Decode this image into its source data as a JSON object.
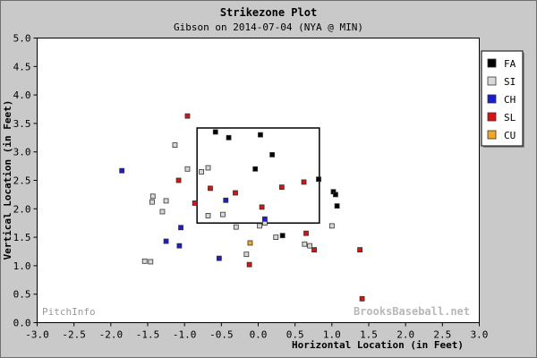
{
  "chart_data": {
    "type": "scatter",
    "title": "Strikezone Plot",
    "subtitle": "Gibson on 2014-07-04 (NYA @ MIN)",
    "xlabel": "Horizontal Location (in Feet)",
    "ylabel": "Vertical Location (in Feet)",
    "xlim": [
      -3.0,
      3.0
    ],
    "ylim": [
      0.0,
      5.0
    ],
    "xticks": [
      "-3.0",
      "-2.5",
      "-2.0",
      "-1.5",
      "-1.0",
      "-0.5",
      "0.0",
      "0.5",
      "1.0",
      "1.5",
      "2.0",
      "2.5",
      "3.0"
    ],
    "yticks": [
      "0.0",
      "0.5",
      "1.0",
      "1.5",
      "2.0",
      "2.5",
      "3.0",
      "3.5",
      "4.0",
      "4.5",
      "5.0"
    ],
    "grid": false,
    "legend_position": "right",
    "strike_zone": {
      "x": [
        -0.83,
        0.83
      ],
      "y": [
        1.75,
        3.42
      ]
    },
    "series": [
      {
        "name": "FA",
        "color": "#000000",
        "points": [
          {
            "x": -0.58,
            "y": 3.35
          },
          {
            "x": -0.4,
            "y": 3.25
          },
          {
            "x": 0.03,
            "y": 3.3
          },
          {
            "x": 0.19,
            "y": 2.95
          },
          {
            "x": -0.04,
            "y": 2.7
          },
          {
            "x": 0.82,
            "y": 2.52
          },
          {
            "x": 1.02,
            "y": 2.3
          },
          {
            "x": 1.05,
            "y": 2.25
          },
          {
            "x": 1.07,
            "y": 2.05
          },
          {
            "x": 0.33,
            "y": 1.53
          }
        ]
      },
      {
        "name": "SI",
        "color": "#d8d8d8",
        "points": [
          {
            "x": -1.13,
            "y": 3.12
          },
          {
            "x": -0.96,
            "y": 2.7
          },
          {
            "x": -0.68,
            "y": 2.72
          },
          {
            "x": -0.77,
            "y": 2.65
          },
          {
            "x": -1.43,
            "y": 2.22
          },
          {
            "x": -1.44,
            "y": 2.12
          },
          {
            "x": -1.25,
            "y": 2.14
          },
          {
            "x": -1.3,
            "y": 1.95
          },
          {
            "x": -0.68,
            "y": 1.88
          },
          {
            "x": -0.48,
            "y": 1.9
          },
          {
            "x": 0.09,
            "y": 1.75
          },
          {
            "x": 0.02,
            "y": 1.7
          },
          {
            "x": -0.3,
            "y": 1.68
          },
          {
            "x": 1.0,
            "y": 1.7
          },
          {
            "x": 0.24,
            "y": 1.5
          },
          {
            "x": 0.63,
            "y": 1.38
          },
          {
            "x": 0.7,
            "y": 1.35
          },
          {
            "x": -0.16,
            "y": 1.2
          },
          {
            "x": -1.54,
            "y": 1.08
          },
          {
            "x": -1.46,
            "y": 1.07
          }
        ]
      },
      {
        "name": "CH",
        "color": "#1a1ad8",
        "points": [
          {
            "x": -1.85,
            "y": 2.67
          },
          {
            "x": -0.44,
            "y": 2.15
          },
          {
            "x": 0.09,
            "y": 1.82
          },
          {
            "x": -1.05,
            "y": 1.67
          },
          {
            "x": -1.25,
            "y": 1.43
          },
          {
            "x": -1.07,
            "y": 1.35
          },
          {
            "x": -0.53,
            "y": 1.13
          }
        ]
      },
      {
        "name": "SL",
        "color": "#dd1111",
        "points": [
          {
            "x": -0.96,
            "y": 3.63
          },
          {
            "x": -1.08,
            "y": 2.5
          },
          {
            "x": -0.65,
            "y": 2.36
          },
          {
            "x": -0.31,
            "y": 2.28
          },
          {
            "x": 0.32,
            "y": 2.38
          },
          {
            "x": 0.62,
            "y": 2.47
          },
          {
            "x": -0.86,
            "y": 2.1
          },
          {
            "x": 0.05,
            "y": 2.03
          },
          {
            "x": 0.65,
            "y": 1.57
          },
          {
            "x": 0.76,
            "y": 1.28
          },
          {
            "x": 1.38,
            "y": 1.28
          },
          {
            "x": -0.12,
            "y": 1.02
          },
          {
            "x": 1.41,
            "y": 0.42
          }
        ]
      },
      {
        "name": "CU",
        "color": "#f5a623",
        "points": [
          {
            "x": -0.11,
            "y": 1.4
          }
        ]
      }
    ]
  },
  "watermarks": {
    "left": "PitchInfo",
    "right": "BrooksBaseball.net"
  }
}
